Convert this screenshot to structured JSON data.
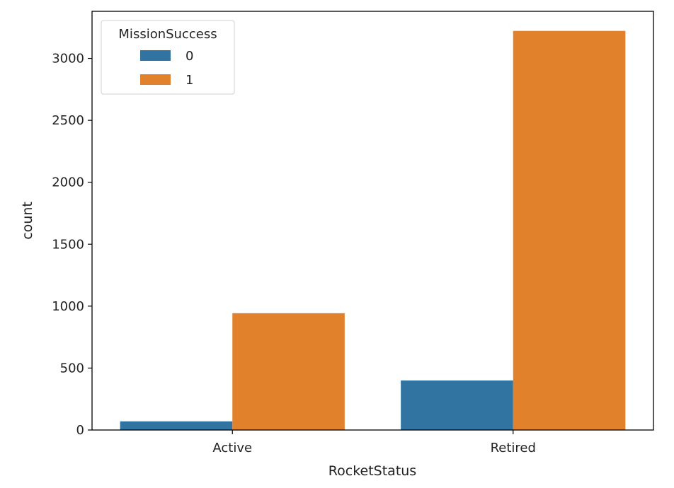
{
  "chart_data": {
    "type": "bar",
    "title": "",
    "xlabel": "RocketStatus",
    "ylabel": "count",
    "categories": [
      "Active",
      "Retired"
    ],
    "series": [
      {
        "name": "0",
        "values": [
          70,
          400
        ]
      },
      {
        "name": "1",
        "values": [
          943,
          3222
        ]
      }
    ],
    "ylim": [
      0,
      3380
    ],
    "yticks": [
      0,
      500,
      1000,
      1500,
      2000,
      2500,
      3000
    ],
    "grid": false,
    "legend": {
      "title": "MissionSuccess",
      "placement": "top-left"
    },
    "colors": {
      "0": "#3274a1",
      "1": "#e1812c"
    }
  }
}
